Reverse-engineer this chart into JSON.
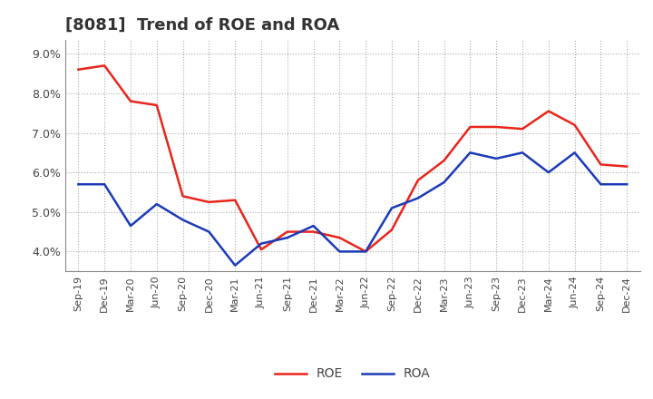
{
  "title": "[8081]  Trend of ROE and ROA",
  "x_labels": [
    "Sep-19",
    "Dec-19",
    "Mar-20",
    "Jun-20",
    "Sep-20",
    "Dec-20",
    "Mar-21",
    "Jun-21",
    "Sep-21",
    "Dec-21",
    "Mar-22",
    "Jun-22",
    "Sep-22",
    "Dec-22",
    "Mar-23",
    "Jun-23",
    "Sep-23",
    "Dec-23",
    "Mar-24",
    "Jun-24",
    "Sep-24",
    "Dec-24"
  ],
  "roe": [
    8.6,
    8.7,
    7.8,
    7.7,
    5.4,
    5.25,
    5.3,
    4.05,
    4.5,
    4.5,
    4.35,
    4.0,
    4.55,
    5.8,
    6.3,
    7.15,
    7.15,
    7.1,
    7.55,
    7.2,
    6.2,
    6.15
  ],
  "roa": [
    5.7,
    5.7,
    4.65,
    5.2,
    4.8,
    4.5,
    3.65,
    4.2,
    4.35,
    4.65,
    4.0,
    4.0,
    5.1,
    5.35,
    5.75,
    6.5,
    6.35,
    6.5,
    6.0,
    6.5,
    5.7,
    5.7
  ],
  "roe_color": "#e8251a",
  "roa_color": "#1a3ab8",
  "ylim_min": 3.5,
  "ylim_max": 9.35,
  "yticks": [
    4.0,
    5.0,
    6.0,
    7.0,
    8.0,
    9.0
  ],
  "background_color": "#ffffff",
  "grid_color": "#aaaaaa",
  "legend_roe": "ROE",
  "legend_roa": "ROA",
  "title_fontsize": 13,
  "tick_fontsize": 8,
  "legend_fontsize": 10
}
